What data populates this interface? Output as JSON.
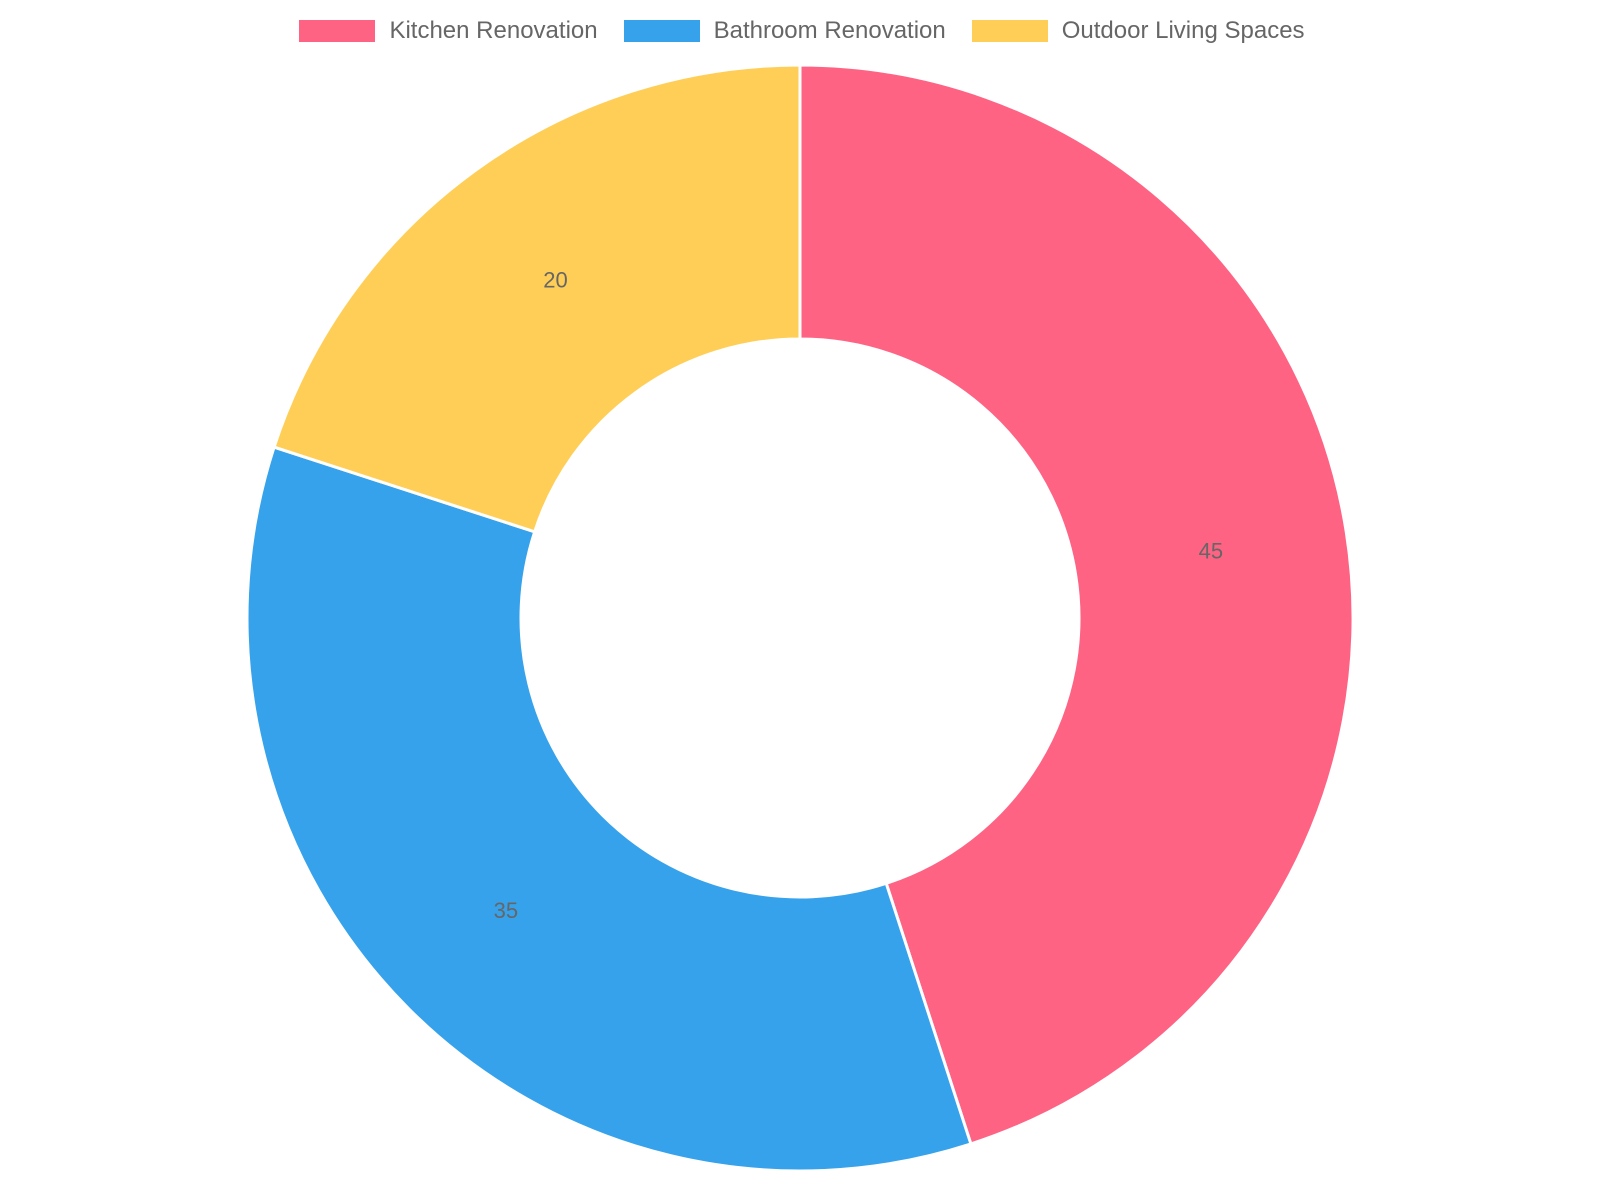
{
  "chart_data": {
    "type": "pie",
    "variant": "doughnut",
    "categories": [
      "Kitchen Renovation",
      "Bathroom Renovation",
      "Outdoor Living Spaces"
    ],
    "values": [
      45,
      35,
      20
    ],
    "colors": [
      "#ff6384",
      "#36a2eb",
      "#ffce56"
    ],
    "legend_position": "top",
    "show_value_labels": true
  }
}
